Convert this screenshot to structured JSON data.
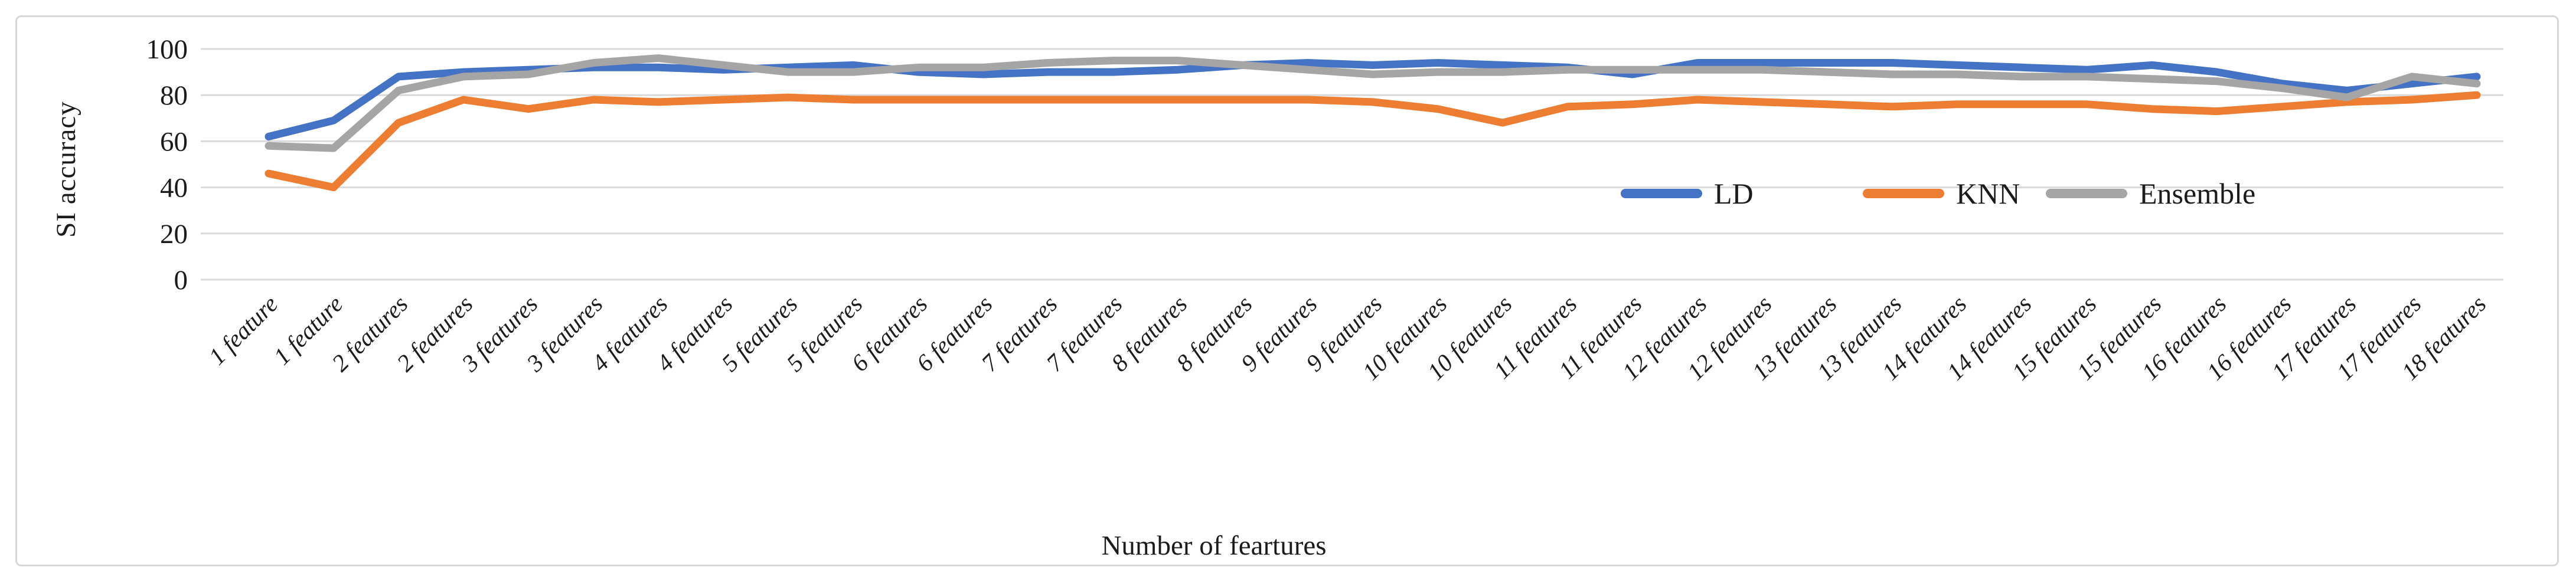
{
  "chart_data": {
    "type": "line",
    "title": "",
    "xlabel": "Number of feartures",
    "ylabel": "SI accuracy",
    "ylim": [
      0,
      100
    ],
    "yticks": [
      0,
      20,
      40,
      60,
      80,
      100
    ],
    "grid": true,
    "legend_position": "inside-center-right",
    "categories": [
      "1 feature",
      "1 feature",
      "2 features",
      "2 features",
      "3 features",
      "3 features",
      "4 features",
      "4 features",
      "5 features",
      "5 features",
      "6 features",
      "6 features",
      "7 features",
      "7 features",
      "8 features",
      "8 features",
      "9 features",
      "9 features",
      "10 features",
      "10 features",
      "11 features",
      "11 features",
      "12 features",
      "12 features",
      "13 features",
      "13 features",
      "14 features",
      "14 features",
      "15 features",
      "15 features",
      "16 features",
      "16 features",
      "17 features",
      "17 features",
      "18 features"
    ],
    "series": [
      {
        "name": "LD",
        "color": "#4472C4",
        "values": [
          62,
          69,
          88,
          90,
          91,
          92,
          92,
          91,
          92,
          93,
          90,
          89,
          90,
          90,
          91,
          93,
          94,
          93,
          94,
          93,
          92,
          89,
          94,
          94,
          94,
          94,
          93,
          92,
          91,
          93,
          90,
          85,
          82,
          85,
          88
        ]
      },
      {
        "name": "KNN",
        "color": "#ED7D31",
        "values": [
          46,
          40,
          68,
          78,
          74,
          78,
          77,
          78,
          79,
          78,
          78,
          78,
          78,
          78,
          78,
          78,
          78,
          77,
          74,
          68,
          75,
          76,
          78,
          77,
          76,
          75,
          76,
          76,
          76,
          74,
          73,
          75,
          77,
          78,
          80
        ]
      },
      {
        "name": "Ensemble",
        "color": "#A5A5A5",
        "values": [
          58,
          57,
          82,
          88,
          89,
          94,
          96,
          93,
          90,
          90,
          92,
          92,
          94,
          95,
          95,
          93,
          91,
          89,
          90,
          90,
          91,
          91,
          91,
          91,
          90,
          89,
          89,
          88,
          88,
          87,
          86,
          83,
          79,
          88,
          85
        ]
      }
    ],
    "colors": {
      "gridline": "#d9d9d9",
      "figure_border": "#d8d8d8",
      "text": "#1b1b1b",
      "background": "#ffffff"
    }
  }
}
